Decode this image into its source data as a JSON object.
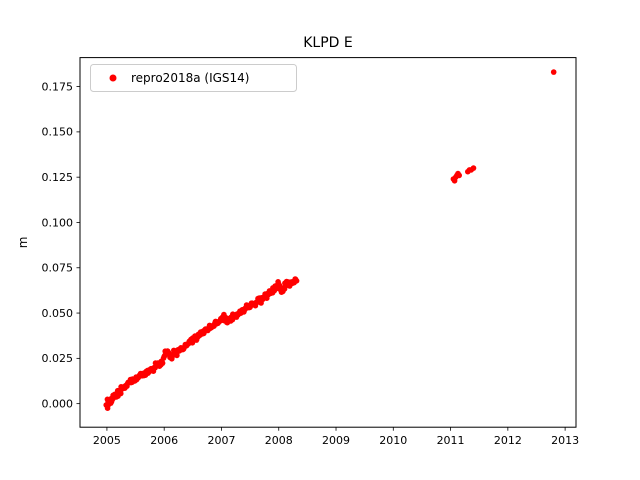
{
  "figure": {
    "title": "KLPD E",
    "ylabel": "m"
  },
  "legend": {
    "label": "repro2018a (IGS14)",
    "marker_color": "#ff0000"
  },
  "chart_data": {
    "type": "scatter",
    "title": "KLPD E",
    "xlabel": "",
    "ylabel": "m",
    "xlim": [
      2004.53,
      2013.19
    ],
    "ylim": [
      -0.013,
      0.191
    ],
    "xticks": [
      2005,
      2006,
      2007,
      2008,
      2009,
      2010,
      2011,
      2012,
      2013
    ],
    "yticks": [
      0.0,
      0.025,
      0.05,
      0.075,
      0.1,
      0.125,
      0.15,
      0.175
    ],
    "ytick_labels": [
      "0.000",
      "0.025",
      "0.050",
      "0.075",
      "0.100",
      "0.125",
      "0.150",
      "0.175"
    ],
    "grid": false,
    "legend_position": "upper left",
    "series": [
      {
        "name": "repro2018a (IGS14)",
        "color": "#ff0000",
        "marker": "dot",
        "points": [
          [
            2005.0,
            -0.001
          ],
          [
            2005.02,
            0.001
          ],
          [
            2005.04,
            0.0
          ],
          [
            2005.06,
            0.002
          ],
          [
            2005.08,
            0.001
          ],
          [
            2005.1,
            0.003
          ],
          [
            2005.12,
            0.004
          ],
          [
            2005.15,
            0.004
          ],
          [
            2005.18,
            0.005
          ],
          [
            2005.2,
            0.006
          ],
          [
            2005.23,
            0.007
          ],
          [
            2005.26,
            0.008
          ],
          [
            2005.3,
            0.009
          ],
          [
            2005.33,
            0.01
          ],
          [
            2005.36,
            0.011
          ],
          [
            2005.4,
            0.012
          ],
          [
            2005.43,
            0.012
          ],
          [
            2005.46,
            0.013
          ],
          [
            2005.5,
            0.014
          ],
          [
            2005.53,
            0.014
          ],
          [
            2005.56,
            0.015
          ],
          [
            2005.6,
            0.016
          ],
          [
            2005.63,
            0.016
          ],
          [
            2005.66,
            0.017
          ],
          [
            2005.7,
            0.017
          ],
          [
            2005.73,
            0.018
          ],
          [
            2005.76,
            0.019
          ],
          [
            2005.8,
            0.019
          ],
          [
            2005.83,
            0.02
          ],
          [
            2005.86,
            0.021
          ],
          [
            2005.9,
            0.021
          ],
          [
            2005.93,
            0.022
          ],
          [
            2005.96,
            0.023
          ],
          [
            2006.0,
            0.026
          ],
          [
            2006.03,
            0.028
          ],
          [
            2006.06,
            0.029
          ],
          [
            2006.09,
            0.027
          ],
          [
            2006.12,
            0.026
          ],
          [
            2006.15,
            0.027
          ],
          [
            2006.18,
            0.028
          ],
          [
            2006.21,
            0.028
          ],
          [
            2006.25,
            0.029
          ],
          [
            2006.28,
            0.03
          ],
          [
            2006.31,
            0.03
          ],
          [
            2006.35,
            0.031
          ],
          [
            2006.38,
            0.032
          ],
          [
            2006.41,
            0.033
          ],
          [
            2006.45,
            0.034
          ],
          [
            2006.48,
            0.034
          ],
          [
            2006.51,
            0.035
          ],
          [
            2006.55,
            0.036
          ],
          [
            2006.58,
            0.037
          ],
          [
            2006.61,
            0.038
          ],
          [
            2006.65,
            0.039
          ],
          [
            2006.68,
            0.04
          ],
          [
            2006.71,
            0.04
          ],
          [
            2006.75,
            0.041
          ],
          [
            2006.78,
            0.042
          ],
          [
            2006.81,
            0.042
          ],
          [
            2006.85,
            0.043
          ],
          [
            2006.88,
            0.044
          ],
          [
            2006.91,
            0.044
          ],
          [
            2006.95,
            0.045
          ],
          [
            2006.98,
            0.046
          ],
          [
            2007.0,
            0.047
          ],
          [
            2007.03,
            0.048
          ],
          [
            2007.06,
            0.046
          ],
          [
            2007.09,
            0.045
          ],
          [
            2007.12,
            0.046
          ],
          [
            2007.15,
            0.047
          ],
          [
            2007.18,
            0.047
          ],
          [
            2007.21,
            0.048
          ],
          [
            2007.25,
            0.049
          ],
          [
            2007.28,
            0.049
          ],
          [
            2007.31,
            0.05
          ],
          [
            2007.35,
            0.051
          ],
          [
            2007.38,
            0.051
          ],
          [
            2007.41,
            0.052
          ],
          [
            2007.45,
            0.053
          ],
          [
            2007.48,
            0.053
          ],
          [
            2007.51,
            0.054
          ],
          [
            2007.55,
            0.055
          ],
          [
            2007.58,
            0.055
          ],
          [
            2007.61,
            0.056
          ],
          [
            2007.65,
            0.057
          ],
          [
            2007.68,
            0.057
          ],
          [
            2007.71,
            0.058
          ],
          [
            2007.75,
            0.059
          ],
          [
            2007.78,
            0.059
          ],
          [
            2007.81,
            0.06
          ],
          [
            2007.85,
            0.061
          ],
          [
            2007.88,
            0.062
          ],
          [
            2007.91,
            0.063
          ],
          [
            2007.95,
            0.064
          ],
          [
            2007.98,
            0.065
          ],
          [
            2008.0,
            0.066
          ],
          [
            2008.03,
            0.064
          ],
          [
            2008.06,
            0.063
          ],
          [
            2008.09,
            0.064
          ],
          [
            2008.12,
            0.065
          ],
          [
            2008.15,
            0.066
          ],
          [
            2008.18,
            0.066
          ],
          [
            2008.21,
            0.067
          ],
          [
            2008.25,
            0.067
          ],
          [
            2008.28,
            0.068
          ],
          [
            2008.3,
            0.068
          ],
          [
            2011.05,
            0.124
          ],
          [
            2011.07,
            0.123
          ],
          [
            2011.09,
            0.125
          ],
          [
            2011.11,
            0.126
          ],
          [
            2011.13,
            0.127
          ],
          [
            2011.15,
            0.126
          ],
          [
            2011.3,
            0.128
          ],
          [
            2011.33,
            0.129
          ],
          [
            2011.36,
            0.129
          ],
          [
            2011.4,
            0.13
          ],
          [
            2012.8,
            0.183
          ]
        ]
      }
    ]
  }
}
